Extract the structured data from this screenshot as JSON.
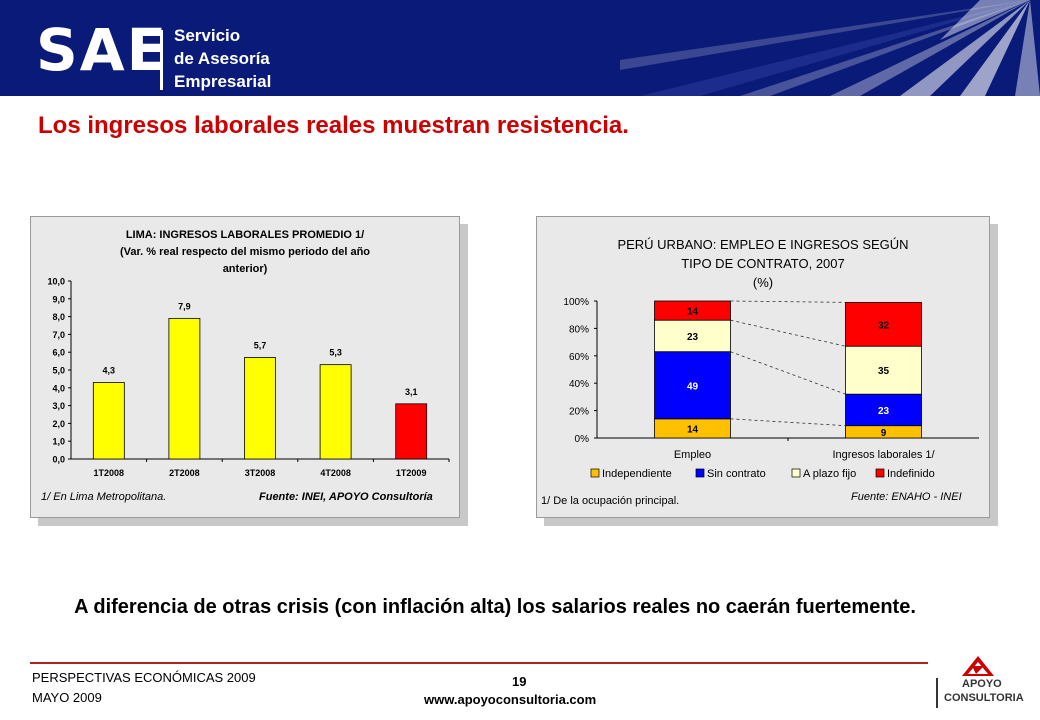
{
  "header": {
    "logo_main": "SAE",
    "logo_sub_1": "Servicio",
    "logo_sub_2": "de Asesoría",
    "logo_sub_3": "Empresarial"
  },
  "slide_title": "Los ingresos laborales reales muestran resistencia.",
  "chart_data": [
    {
      "type": "bar",
      "title_lines": [
        "LIMA: INGRESOS LABORALES PROMEDIO 1/",
        "(Var. % real respecto del mismo periodo del año",
        "anterior)"
      ],
      "categories": [
        "1T2008",
        "2T2008",
        "3T2008",
        "4T2008",
        "1T2009"
      ],
      "values": [
        4.3,
        7.9,
        5.7,
        5.3,
        3.1
      ],
      "value_labels": [
        "4,3",
        "7,9",
        "5,7",
        "5,3",
        "3,1"
      ],
      "bar_colors": [
        "#ffff00",
        "#ffff00",
        "#ffff00",
        "#ffff00",
        "#ff0000"
      ],
      "ylim": [
        0,
        10
      ],
      "yticks": [
        "0,0",
        "1,0",
        "2,0",
        "3,0",
        "4,0",
        "5,0",
        "6,0",
        "7,0",
        "8,0",
        "9,0",
        "10,0"
      ],
      "grid": false,
      "note": "1/ En Lima Metropolitana.",
      "source": "Fuente: INEI, APOYO Consultoría"
    },
    {
      "type": "bar",
      "stacked": true,
      "title_lines": [
        "PERÚ URBANO: EMPLEO E INGRESOS SEGÚN",
        "TIPO DE CONTRATO, 2007",
        "(%)"
      ],
      "categories": [
        "Empleo",
        "Ingresos laborales 1/"
      ],
      "series": [
        {
          "name": "Independiente",
          "values": [
            14,
            9
          ],
          "color": "#ffc000"
        },
        {
          "name": "Sin contrato",
          "values": [
            49,
            23
          ],
          "color": "#0000ff"
        },
        {
          "name": "A plazo fijo",
          "values": [
            23,
            35
          ],
          "color": "#ffffcc"
        },
        {
          "name": "Indefinido",
          "values": [
            14,
            32
          ],
          "color": "#ff0000"
        }
      ],
      "ylim": [
        0,
        100
      ],
      "yticks": [
        "0%",
        "20%",
        "40%",
        "60%",
        "80%",
        "100%"
      ],
      "legend_position": "bottom",
      "note": "1/ De la ocupación principal.",
      "source": "Fuente: ENAHO - INEI"
    }
  ],
  "bottom_text": "A diferencia de otras crisis (con inflación alta) los salarios reales no caerán fuertemente.",
  "footer": {
    "left_1": "PERSPECTIVAS ECONÓMICAS 2009",
    "left_2": "MAYO 2009",
    "page": "19",
    "url": "www.apoyoconsultoria.com",
    "apoyo_1": "APOYO",
    "apoyo_2": "CONSULTORIA"
  },
  "colors": {
    "title_red": "#cc0000",
    "header_blue": "#0a1a78"
  }
}
